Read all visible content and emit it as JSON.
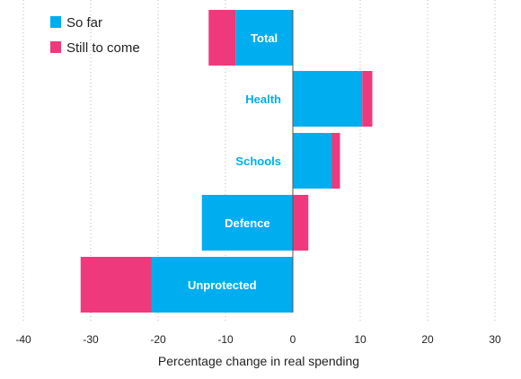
{
  "chart_data": {
    "type": "bar",
    "orientation": "horizontal",
    "stacked": true,
    "categories": [
      "Total",
      "Health",
      "Schools",
      "Defence",
      "Unprotected"
    ],
    "series": [
      {
        "name": "So far",
        "color": "#00aeef",
        "values": [
          -8.5,
          10.3,
          5.8,
          -13.5,
          -21.0
        ]
      },
      {
        "name": "Still to come",
        "color": "#ee3a7c",
        "values": [
          -4.0,
          1.5,
          1.2,
          2.3,
          -10.5
        ]
      }
    ],
    "xlabel": "Percentage change in real spending",
    "xlim": [
      -40,
      30
    ],
    "xticks": [
      -40,
      -30,
      -20,
      -10,
      0,
      10,
      20,
      30
    ],
    "tick_labels": [
      "-40",
      "-30",
      "-20",
      "-10",
      "0",
      "10",
      "20",
      "30"
    ],
    "grid": "vertical dotted",
    "legend": "top-left",
    "category_label_colors": {
      "inside_bar": "#ffffff",
      "outside_bar": "#00aeef"
    }
  }
}
